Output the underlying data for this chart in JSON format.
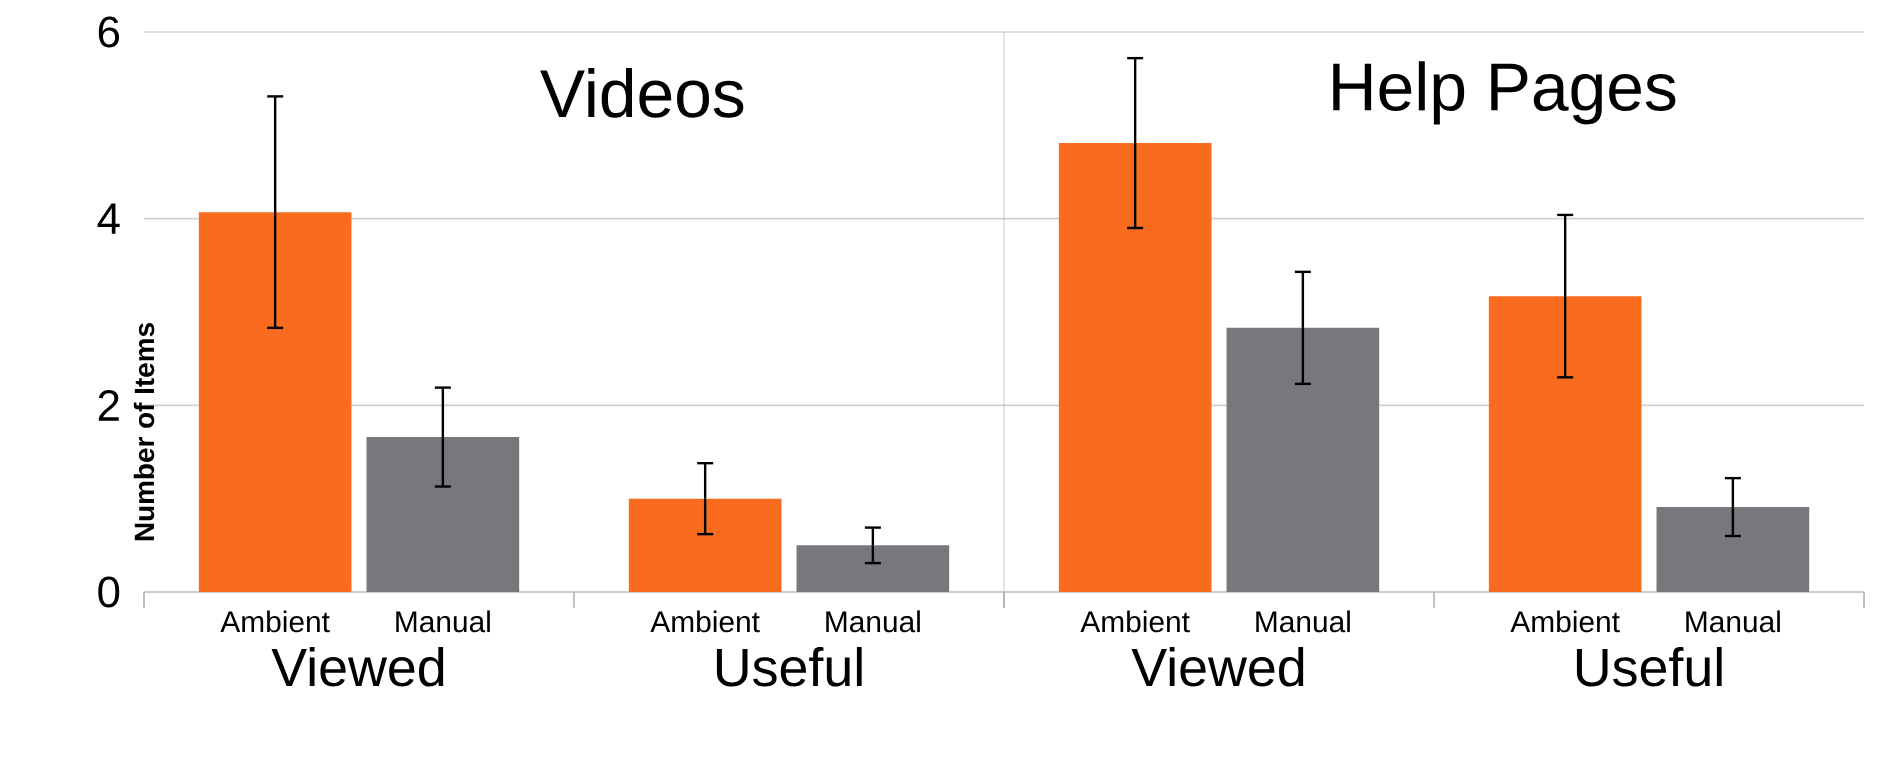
{
  "chart_data": [
    {
      "type": "bar",
      "title": "Videos",
      "ylabel": "Number of Items",
      "categories": [
        "Viewed",
        "Useful"
      ],
      "series": [
        {
          "name": "Ambient",
          "color": "#f96b1e",
          "values": [
            4.07,
            1.0
          ],
          "errors": [
            1.24,
            0.38
          ]
        },
        {
          "name": "Manual",
          "color": "#77787c",
          "values": [
            1.66,
            0.5
          ],
          "errors": [
            0.53,
            0.19
          ]
        }
      ],
      "ylim": [
        0,
        6
      ],
      "yticks": [
        0,
        2,
        4,
        6
      ],
      "grid": "y"
    },
    {
      "type": "bar",
      "title": "Help Pages",
      "categories": [
        "Viewed",
        "Useful"
      ],
      "series": [
        {
          "name": "Ambient",
          "color": "#f96b1e",
          "values": [
            4.81,
            3.17
          ],
          "errors": [
            0.91,
            0.87
          ]
        },
        {
          "name": "Manual",
          "color": "#77787c",
          "values": [
            2.83,
            0.91
          ],
          "errors": [
            0.6,
            0.31
          ]
        }
      ],
      "ylim": [
        0,
        6
      ],
      "yticks": [
        0,
        2,
        4,
        6
      ],
      "grid": "y",
      "tick_labels": "x"
    }
  ]
}
